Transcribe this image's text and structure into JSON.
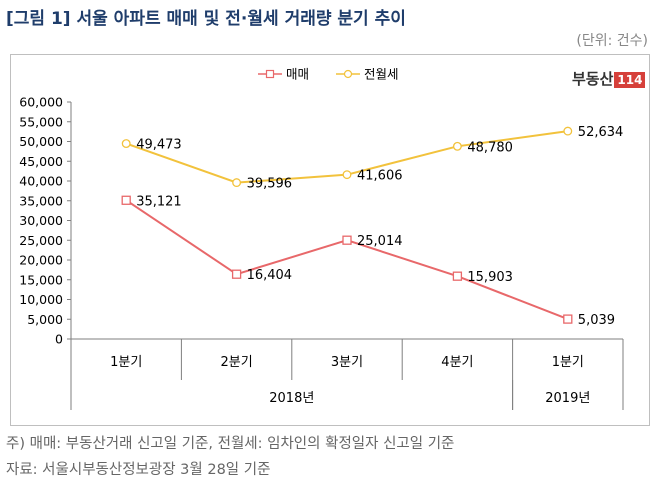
{
  "title": "[그림 1] 서울 아파트 매매 및 전·월세 거래량 분기 추이",
  "unit": "(단위: 건수)",
  "logo": {
    "text": "부동산",
    "box": "114"
  },
  "notes": [
    "주) 매매: 부동산거래 신고일 기준, 전월세: 임차인의 확정일자 신고일 기준",
    "자료: 서울시부동산정보광장 3월 28일 기준"
  ],
  "chart_data": {
    "type": "line",
    "categories": [
      "1분기",
      "2분기",
      "3분기",
      "4분기",
      "1분기"
    ],
    "groups": [
      {
        "label": "2018년",
        "span": 4
      },
      {
        "label": "2019년",
        "span": 1
      }
    ],
    "ylim": [
      0,
      60000
    ],
    "ytick_step": 5000,
    "legend_position": "top-center",
    "series": [
      {
        "name": "매매",
        "values": [
          35121,
          16404,
          25014,
          15903,
          5039
        ],
        "labels": [
          "35,121",
          "16,404",
          "25,014",
          "15,903",
          "5,039"
        ],
        "color": "#e8686a",
        "marker": "square"
      },
      {
        "name": "전월세",
        "values": [
          49473,
          39596,
          41606,
          48780,
          52634
        ],
        "labels": [
          "49,473",
          "39,596",
          "41,606",
          "48,780",
          "52,634"
        ],
        "color": "#f2c23c",
        "marker": "circle"
      }
    ]
  }
}
